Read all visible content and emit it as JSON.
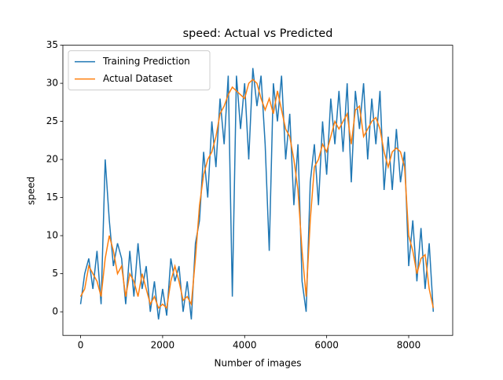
{
  "chart_data": {
    "type": "line",
    "title": "speed: Actual vs Predicted",
    "xlabel": "Number of images",
    "ylabel": "speed",
    "x": [
      0,
      100,
      200,
      300,
      400,
      500,
      600,
      700,
      800,
      900,
      1000,
      1100,
      1200,
      1300,
      1400,
      1500,
      1600,
      1700,
      1800,
      1900,
      2000,
      2100,
      2200,
      2300,
      2400,
      2500,
      2600,
      2700,
      2800,
      2900,
      3000,
      3100,
      3200,
      3300,
      3400,
      3500,
      3600,
      3700,
      3800,
      3900,
      4000,
      4100,
      4200,
      4300,
      4400,
      4500,
      4600,
      4700,
      4800,
      4900,
      5000,
      5100,
      5200,
      5300,
      5400,
      5500,
      5600,
      5700,
      5800,
      5900,
      6000,
      6100,
      6200,
      6300,
      6400,
      6500,
      6600,
      6700,
      6800,
      6900,
      7000,
      7100,
      7200,
      7300,
      7400,
      7500,
      7600,
      7700,
      7800,
      7900,
      8000,
      8100,
      8200,
      8300,
      8400,
      8500,
      8600
    ],
    "series": [
      {
        "name": "Training Prediction",
        "color": "#1f77b4",
        "values": [
          1,
          5,
          7,
          3,
          8,
          1,
          20,
          12,
          6,
          9,
          7,
          1,
          8,
          2,
          9,
          3,
          6,
          0,
          4,
          -1,
          3,
          -0.5,
          7,
          4,
          6,
          0,
          4,
          -1,
          9,
          12,
          21,
          15,
          25,
          19,
          28,
          22,
          31,
          2,
          31,
          24,
          30,
          20,
          32,
          27,
          31,
          22,
          8,
          30,
          25,
          31,
          20,
          26,
          14,
          22,
          4,
          0,
          17,
          22,
          14,
          25,
          18,
          28,
          22,
          29,
          21,
          30,
          17,
          29,
          24,
          30,
          20,
          28,
          22,
          29,
          16,
          23,
          16,
          24,
          17,
          21,
          6,
          12,
          4,
          11,
          3,
          9,
          0
        ]
      },
      {
        "name": "Actual Dataset",
        "color": "#ff7f0e",
        "values": [
          2,
          3,
          6,
          5,
          4,
          2,
          7,
          10,
          8,
          5,
          6,
          2,
          5,
          4,
          2,
          5,
          3,
          1,
          2,
          0.5,
          1,
          0.5,
          4,
          6,
          4,
          1.5,
          2,
          1,
          7,
          14,
          18,
          20,
          21,
          23,
          26,
          27,
          28.5,
          29.5,
          29,
          28.5,
          28,
          30,
          30.5,
          30,
          28,
          26.5,
          28,
          26,
          29,
          26.5,
          24,
          23,
          20,
          16,
          8,
          2,
          12,
          19,
          20,
          22,
          21,
          23,
          25,
          24,
          25,
          26,
          22,
          26.5,
          27,
          23,
          24,
          25,
          25.5,
          24,
          21,
          19,
          21,
          21.5,
          21,
          19,
          10,
          8,
          5,
          7,
          7.5,
          3,
          0.5
        ]
      }
    ],
    "xlim": [
      -432,
      9073
    ],
    "xticks": [
      0,
      2000,
      4000,
      6000,
      8000
    ],
    "ylim": [
      -3.1,
      35.0
    ],
    "yticks": [
      0,
      5,
      10,
      15,
      20,
      25,
      30,
      35
    ],
    "legend": "upper left"
  }
}
